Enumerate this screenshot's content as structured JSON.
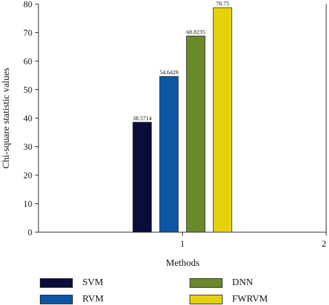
{
  "chart_data": {
    "type": "bar",
    "xlabel": "Methods",
    "ylabel": "Chi-square statistic values",
    "ylim": [
      0,
      80
    ],
    "yticks": [
      0,
      10,
      20,
      30,
      40,
      50,
      60,
      70,
      80
    ],
    "xlim": [
      0,
      2
    ],
    "xticks": [
      "1",
      "2"
    ],
    "group_x": 1,
    "series": [
      {
        "name": "SVM",
        "value": 38.5714,
        "label": "38.5714",
        "color": "#0b0c3b"
      },
      {
        "name": "RVM",
        "value": 54.6429,
        "label": "54.6429",
        "color": "#0b57a4"
      },
      {
        "name": "DNN",
        "value": 68.8235,
        "label": "68.8235",
        "color": "#6a8a2a"
      },
      {
        "name": "FWRVM",
        "value": 78.75,
        "label": "78.75",
        "color": "#e6d20a"
      }
    ],
    "grid": false,
    "legend_position": "bottom"
  }
}
